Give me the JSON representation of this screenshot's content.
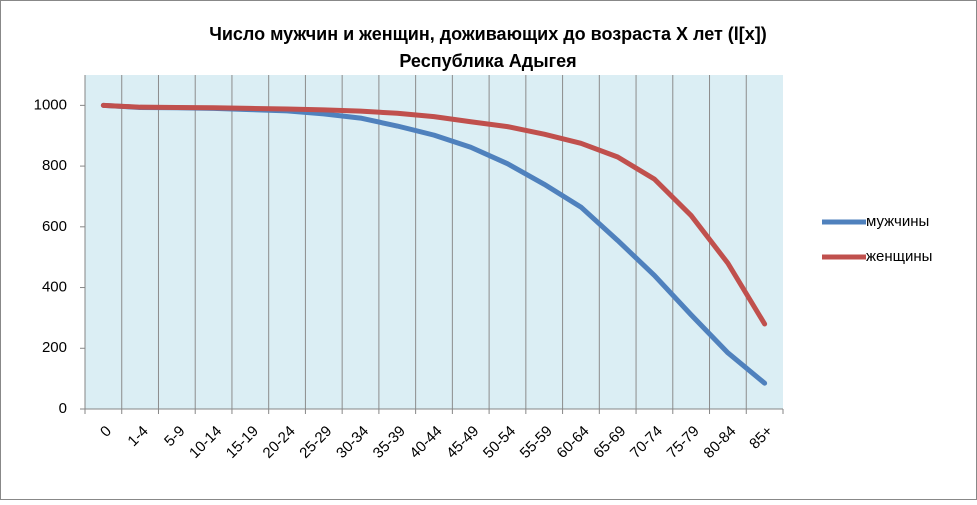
{
  "chart_data": {
    "type": "line",
    "title": "Число мужчин и женщин, доживающих до возраста X лет (l[x])",
    "subtitle": "Республика Адыгея",
    "categories": [
      "0",
      "1-4",
      "5-9",
      "10-14",
      "15-19",
      "20-24",
      "25-29",
      "30-34",
      "35-39",
      "40-44",
      "45-49",
      "50-54",
      "55-59",
      "60-64",
      "65-69",
      "70-74",
      "75-79",
      "80-84",
      "85+"
    ],
    "series": [
      {
        "name": "мужчины",
        "color": "#4f81bd",
        "values": [
          1000,
          993,
          992,
          990,
          986,
          982,
          972,
          958,
          932,
          902,
          862,
          808,
          740,
          665,
          555,
          440,
          310,
          185,
          85
        ]
      },
      {
        "name": "женщины",
        "color": "#c0504d",
        "values": [
          1000,
          994,
          993,
          992,
          990,
          988,
          985,
          981,
          974,
          963,
          946,
          930,
          905,
          875,
          830,
          757,
          637,
          480,
          280
        ]
      }
    ],
    "ylim": [
      0,
      1100
    ],
    "yticks": [
      0,
      200,
      400,
      600,
      800,
      1000
    ],
    "grid": "vertical",
    "legend": "right"
  }
}
